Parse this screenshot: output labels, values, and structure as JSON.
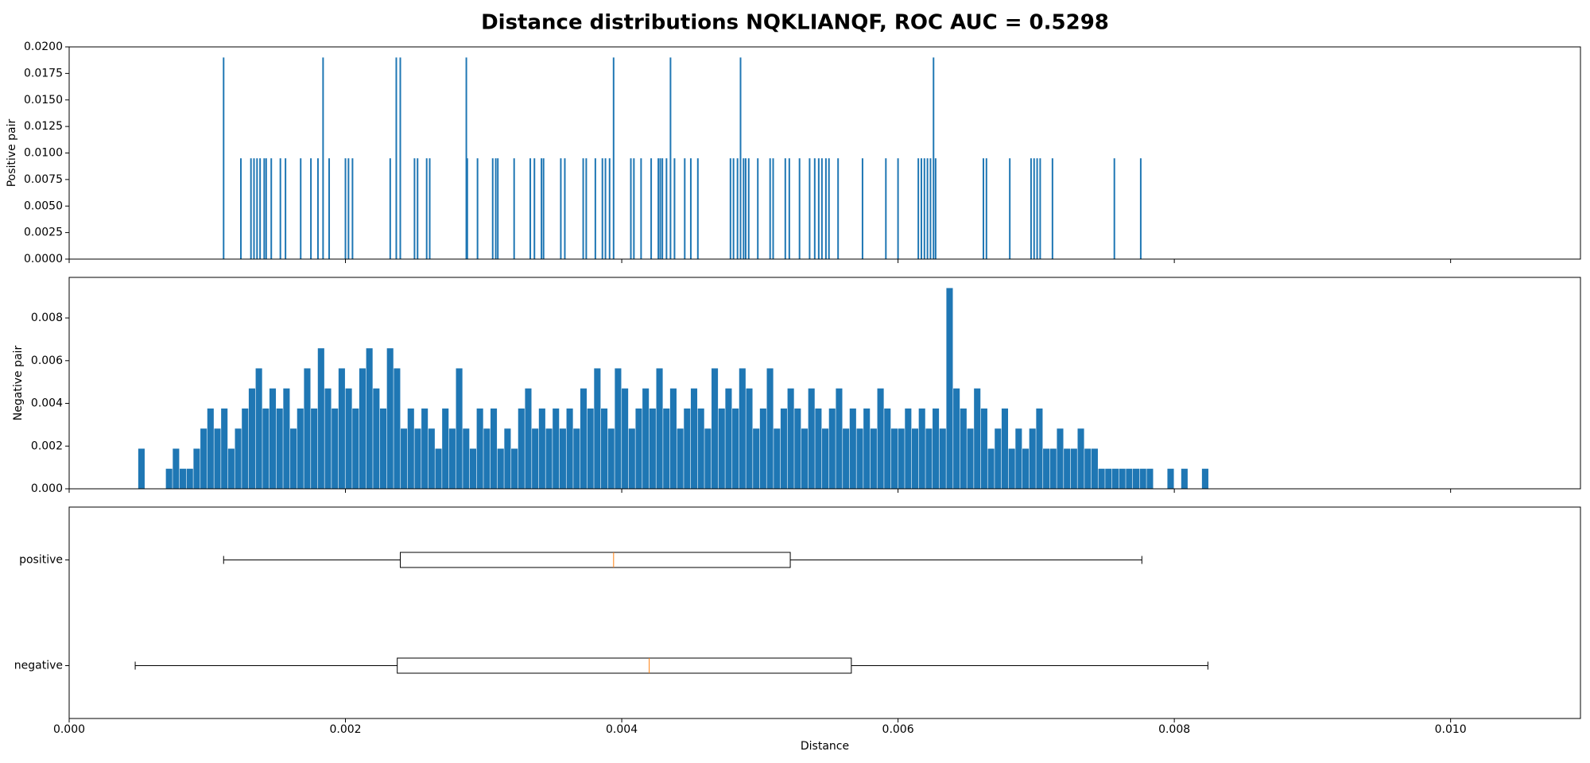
{
  "chart_data": [
    {
      "type": "bar",
      "title": "Distance distributions NQKLIANQF, ROC AUC = 0.5298",
      "ylabel": "Positive pair",
      "color": "#1f77b4",
      "xlim": [
        0,
        0.01094
      ],
      "ylim": [
        0,
        0.02
      ],
      "yticks": [
        {
          "value": 0,
          "label": "0.0000"
        },
        {
          "value": 0.0025,
          "label": "0.0025"
        },
        {
          "value": 0.005,
          "label": "0.0050"
        },
        {
          "value": 0.0075,
          "label": "0.0075"
        },
        {
          "value": 0.01,
          "label": "0.0100"
        },
        {
          "value": 0.0125,
          "label": "0.0125"
        },
        {
          "value": 0.015,
          "label": "0.0150"
        },
        {
          "value": 0.0175,
          "label": "0.0175"
        },
        {
          "value": 0.02,
          "label": "0.0200"
        }
      ],
      "x": [
        0.001118,
        0.001838,
        0.002368,
        0.002397,
        0.002875,
        0.003941,
        0.004353,
        0.00486,
        0.006257,
        0.001243,
        0.001316,
        0.001338,
        0.00136,
        0.001382,
        0.001412,
        0.001426,
        0.001463,
        0.001529,
        0.001566,
        0.001676,
        0.00175,
        0.001801,
        0.001882,
        0.002,
        0.002022,
        0.002051,
        0.002324,
        0.0025,
        0.002522,
        0.002588,
        0.00261,
        0.002882,
        0.002956,
        0.003066,
        0.003088,
        0.003103,
        0.003221,
        0.003338,
        0.003368,
        0.003419,
        0.003434,
        0.003559,
        0.003588,
        0.003721,
        0.003743,
        0.003809,
        0.00386,
        0.003882,
        0.003912,
        0.004066,
        0.004088,
        0.00414,
        0.004213,
        0.004265,
        0.004279,
        0.004294,
        0.004324,
        0.004382,
        0.004456,
        0.0045,
        0.004551,
        0.004787,
        0.004809,
        0.004838,
        0.004882,
        0.004897,
        0.004919,
        0.004985,
        0.005074,
        0.005096,
        0.005184,
        0.005213,
        0.005287,
        0.00536,
        0.005397,
        0.005426,
        0.005449,
        0.005478,
        0.0055,
        0.005566,
        0.005743,
        0.005912,
        0.006,
        0.006147,
        0.006169,
        0.006191,
        0.006213,
        0.006235,
        0.006272,
        0.006618,
        0.00664,
        0.006809,
        0.006963,
        0.006985,
        0.007007,
        0.007029,
        0.007118,
        0.007566,
        0.007757
      ],
      "values": [
        0.019,
        0.019,
        0.019,
        0.019,
        0.019,
        0.019,
        0.019,
        0.019,
        0.019,
        0.0095,
        0.0095,
        0.0095,
        0.0095,
        0.0095,
        0.0095,
        0.0095,
        0.0095,
        0.0095,
        0.0095,
        0.0095,
        0.0095,
        0.0095,
        0.0095,
        0.0095,
        0.0095,
        0.0095,
        0.0095,
        0.0095,
        0.0095,
        0.0095,
        0.0095,
        0.0095,
        0.0095,
        0.0095,
        0.0095,
        0.0095,
        0.0095,
        0.0095,
        0.0095,
        0.0095,
        0.0095,
        0.0095,
        0.0095,
        0.0095,
        0.0095,
        0.0095,
        0.0095,
        0.0095,
        0.0095,
        0.0095,
        0.0095,
        0.0095,
        0.0095,
        0.0095,
        0.0095,
        0.0095,
        0.0095,
        0.0095,
        0.0095,
        0.0095,
        0.0095,
        0.0095,
        0.0095,
        0.0095,
        0.0095,
        0.0095,
        0.0095,
        0.0095,
        0.0095,
        0.0095,
        0.0095,
        0.0095,
        0.0095,
        0.0095,
        0.0095,
        0.0095,
        0.0095,
        0.0095,
        0.0095,
        0.0095,
        0.0095,
        0.0095,
        0.0095,
        0.0095,
        0.0095,
        0.0095,
        0.0095,
        0.0095,
        0.0095,
        0.0095,
        0.0095,
        0.0095,
        0.0095,
        0.0095,
        0.0095,
        0.0095,
        0.0095,
        0.0095,
        0.0095
      ]
    },
    {
      "type": "histogram",
      "ylabel": "Negative pair",
      "color": "#1f77b4",
      "xlim": [
        0,
        0.01094
      ],
      "ylim": [
        0,
        0.0099
      ],
      "yticks": [
        {
          "value": 0,
          "label": "0.000"
        },
        {
          "value": 0.002,
          "label": "0.002"
        },
        {
          "value": 0.004,
          "label": "0.004"
        },
        {
          "value": 0.006,
          "label": "0.006"
        },
        {
          "value": 0.008,
          "label": "0.008"
        }
      ],
      "bins": [
        0.0005,
        0.00055,
        0.0006,
        0.00065,
        0.0007,
        0.00075,
        0.0008,
        0.00085,
        0.0009,
        0.00095,
        0.001,
        0.00105,
        0.0011,
        0.00115,
        0.0012,
        0.00125,
        0.0013,
        0.00135,
        0.0014,
        0.00145,
        0.0015,
        0.00155,
        0.0016,
        0.00165,
        0.0017,
        0.00175,
        0.0018,
        0.00185,
        0.0019,
        0.00195,
        0.002,
        0.00205,
        0.0021,
        0.00215,
        0.0022,
        0.00225,
        0.0023,
        0.00235,
        0.0024,
        0.00245,
        0.0025,
        0.00255,
        0.0026,
        0.00265,
        0.0027,
        0.00275,
        0.0028,
        0.00285,
        0.0029,
        0.00295,
        0.003,
        0.00305,
        0.0031,
        0.00315,
        0.0032,
        0.00325,
        0.0033,
        0.00335,
        0.0034,
        0.00345,
        0.0035,
        0.00355,
        0.0036,
        0.00365,
        0.0037,
        0.00375,
        0.0038,
        0.00385,
        0.0039,
        0.00395,
        0.004,
        0.00405,
        0.0041,
        0.00415,
        0.0042,
        0.00425,
        0.0043,
        0.00435,
        0.0044,
        0.00445,
        0.0045,
        0.00455,
        0.0046,
        0.00465,
        0.0047,
        0.00475,
        0.0048,
        0.00485,
        0.0049,
        0.00495,
        0.005,
        0.00505,
        0.0051,
        0.00515,
        0.0052,
        0.00525,
        0.0053,
        0.00535,
        0.0054,
        0.00545,
        0.0055,
        0.00555,
        0.0056,
        0.00565,
        0.0057,
        0.00575,
        0.0058,
        0.00585,
        0.0059,
        0.00595,
        0.006,
        0.00605,
        0.0061,
        0.00615,
        0.0062,
        0.00625,
        0.0063,
        0.00635,
        0.0064,
        0.00645,
        0.0065,
        0.00655,
        0.0066,
        0.00665,
        0.0067,
        0.00675,
        0.0068,
        0.00685,
        0.0069,
        0.00695,
        0.007,
        0.00705,
        0.0071,
        0.00715,
        0.0072,
        0.00725,
        0.0073,
        0.00735,
        0.0074,
        0.00745,
        0.0075,
        0.00755,
        0.0076,
        0.00765,
        0.0077,
        0.00775,
        0.0078,
        0.00785,
        0.0079,
        0.00795,
        0.008,
        0.00805,
        0.0081,
        0.00815,
        0.0082,
        0.00825,
        0.0083,
        0.00835
      ],
      "values": [
        0.00188,
        0,
        0,
        0,
        0.00094,
        0.00188,
        0.00094,
        0.00094,
        0.00188,
        0.00282,
        0.00376,
        0.00282,
        0.00376,
        0.00188,
        0.00282,
        0.00376,
        0.0047,
        0.00564,
        0.00376,
        0.0047,
        0.00376,
        0.0047,
        0.00282,
        0.00376,
        0.00564,
        0.00376,
        0.00658,
        0.0047,
        0.00376,
        0.00564,
        0.0047,
        0.00376,
        0.00564,
        0.00658,
        0.0047,
        0.00376,
        0.00658,
        0.00564,
        0.00282,
        0.00376,
        0.00282,
        0.00376,
        0.00282,
        0.00188,
        0.00376,
        0.00282,
        0.00564,
        0.00282,
        0.00188,
        0.00376,
        0.00282,
        0.00376,
        0.00188,
        0.00282,
        0.00188,
        0.00376,
        0.0047,
        0.00282,
        0.00376,
        0.00282,
        0.00376,
        0.00282,
        0.00376,
        0.00282,
        0.0047,
        0.00376,
        0.00564,
        0.00376,
        0.00282,
        0.00564,
        0.0047,
        0.00282,
        0.00376,
        0.0047,
        0.00376,
        0.00564,
        0.00376,
        0.0047,
        0.00282,
        0.00376,
        0.0047,
        0.00376,
        0.00282,
        0.00564,
        0.00376,
        0.0047,
        0.00376,
        0.00564,
        0.0047,
        0.00282,
        0.00376,
        0.00564,
        0.00282,
        0.00376,
        0.0047,
        0.00376,
        0.00282,
        0.0047,
        0.00376,
        0.00282,
        0.00376,
        0.0047,
        0.00282,
        0.00376,
        0.00282,
        0.00376,
        0.00282,
        0.0047,
        0.00376,
        0.00282,
        0.00282,
        0.00376,
        0.00282,
        0.00376,
        0.00282,
        0.00376,
        0.00282,
        0.0094,
        0.0047,
        0.00376,
        0.00282,
        0.0047,
        0.00376,
        0.00188,
        0.00282,
        0.00376,
        0.00188,
        0.00282,
        0.00188,
        0.00282,
        0.00376,
        0.00188,
        0.00188,
        0.00282,
        0.00188,
        0.00188,
        0.00282,
        0.00188,
        0.00188,
        0.00094,
        0.00094,
        0.00094,
        0.00094,
        0.00094,
        0.00094,
        0.00094,
        0.00094,
        0,
        0,
        0.00094,
        0,
        0.00094,
        0,
        0,
        0.00094,
        0,
        0
      ]
    },
    {
      "type": "box",
      "xlabel": "Distance",
      "xlim": [
        0,
        0.01094
      ],
      "xticks": [
        {
          "value": 0,
          "label": "0.000"
        },
        {
          "value": 0.002,
          "label": "0.002"
        },
        {
          "value": 0.004,
          "label": "0.004"
        },
        {
          "value": 0.006,
          "label": "0.006"
        },
        {
          "value": 0.008,
          "label": "0.008"
        },
        {
          "value": 0.01,
          "label": "0.010"
        }
      ],
      "categories": [
        "positive",
        "negative"
      ],
      "boxes": [
        {
          "whislo": 0.001118,
          "q1": 0.002397,
          "med": 0.003941,
          "q3": 0.00522,
          "whishi": 0.007765
        },
        {
          "whislo": 0.000478,
          "q1": 0.002375,
          "med": 0.004199,
          "q3": 0.005662,
          "whishi": 0.008243
        }
      ],
      "color": "#000000",
      "median_color": "#ff7f0e"
    }
  ]
}
